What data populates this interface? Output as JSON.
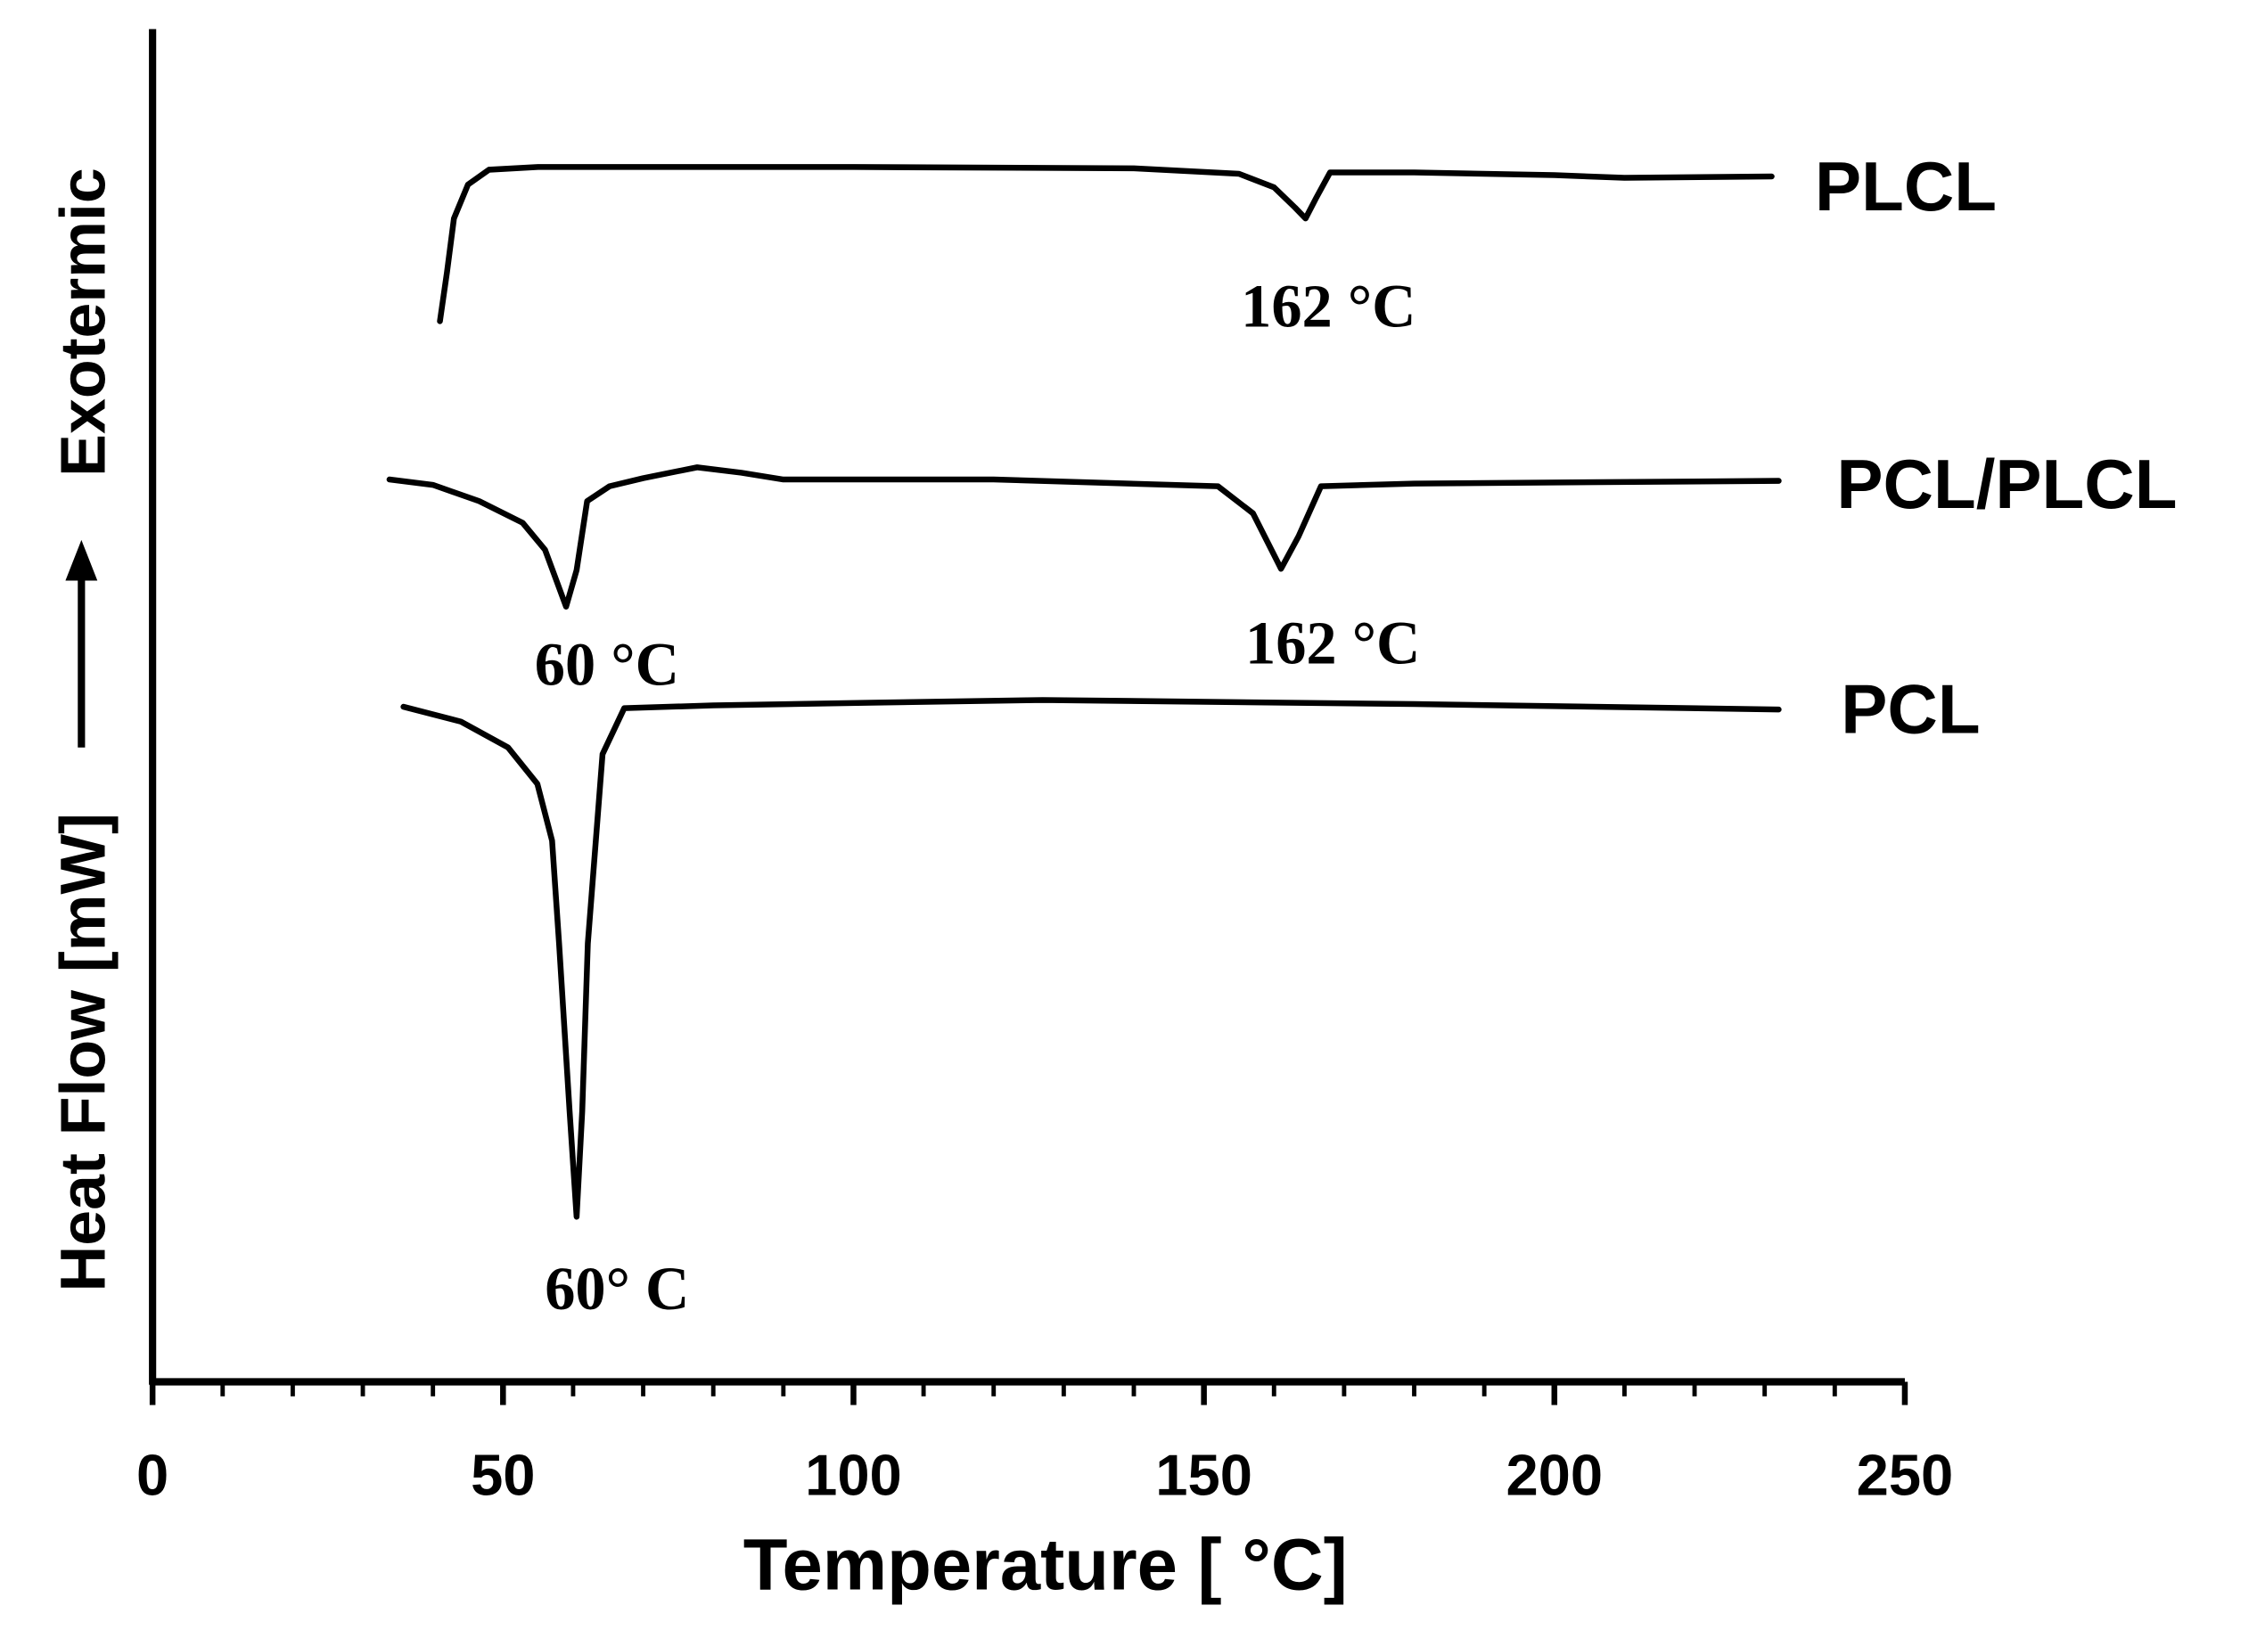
{
  "chart_data": {
    "type": "line",
    "x_label": "Temperature [ °C]",
    "y_label": "Heat Flow [mW]",
    "y_label_top": "Exotermic",
    "xlim": [
      0,
      250
    ],
    "xticks": [
      0,
      50,
      100,
      150,
      200,
      250
    ],
    "xminorticks": [
      10,
      20,
      30,
      40,
      60,
      70,
      80,
      90,
      110,
      120,
      130,
      140,
      160,
      170,
      180,
      190,
      210,
      220,
      230,
      240
    ],
    "ylim": [
      0,
      100
    ],
    "series": [
      {
        "name": "PLCL",
        "color": "#000000",
        "x": [
          41,
          42,
          43,
          45,
          48,
          55,
          100,
          140,
          155,
          160,
          163,
          164.5,
          166,
          168,
          180,
          200,
          210,
          231
        ],
        "values": [
          78.4,
          82,
          86,
          88.5,
          89.6,
          89.8,
          89.8,
          89.7,
          89.3,
          88.3,
          86.8,
          86.0,
          87.5,
          89.4,
          89.4,
          89.2,
          89.0,
          89.1
        ]
      },
      {
        "name": "PCL/PLCL",
        "color": "#000000",
        "x": [
          33.8,
          40,
          46.6,
          52.8,
          56,
          59,
          60.5,
          62,
          65.2,
          70,
          77.7,
          84,
          90,
          120,
          152,
          157,
          161,
          163.5,
          166.7,
          180,
          232
        ],
        "values": [
          66.7,
          66.3,
          65.1,
          63.5,
          61.5,
          57.3,
          60,
          65.1,
          66.2,
          66.8,
          67.6,
          67.2,
          66.7,
          66.7,
          66.2,
          64.2,
          60.1,
          62.5,
          66.2,
          66.4,
          66.6
        ]
      },
      {
        "name": "PCL",
        "color": "#000000",
        "x": [
          35.8,
          44,
          50.7,
          54.9,
          57,
          58,
          59.5,
          60.5,
          61.3,
          62.1,
          64.2,
          67.3,
          80,
          102.5,
          127,
          180,
          232
        ],
        "values": [
          49.9,
          48.8,
          46.9,
          44.2,
          40,
          32.4,
          20,
          12.2,
          20,
          32.4,
          46.4,
          49.8,
          50.0,
          50.2,
          50.4,
          50.1,
          49.7
        ]
      }
    ],
    "annotations": [
      "162 °C",
      "60 °C",
      "162 °C",
      "60° C"
    ]
  }
}
